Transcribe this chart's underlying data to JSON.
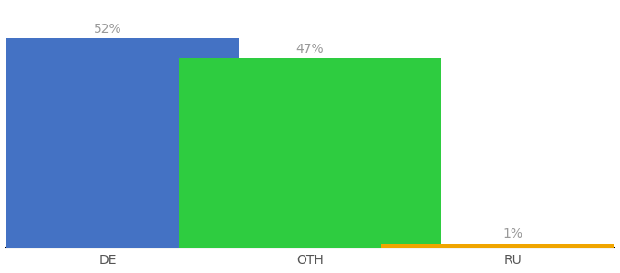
{
  "categories": [
    "DE",
    "OTH",
    "RU"
  ],
  "values": [
    52,
    47,
    1
  ],
  "bar_colors": [
    "#4472c4",
    "#2ecc40",
    "#f0a500"
  ],
  "label_color": "#999999",
  "ylim": [
    0,
    60
  ],
  "bar_width": 0.65,
  "x_positions": [
    0.25,
    0.75,
    1.25
  ],
  "xlim": [
    0.0,
    1.5
  ],
  "figsize": [
    6.8,
    3.0
  ],
  "dpi": 100
}
